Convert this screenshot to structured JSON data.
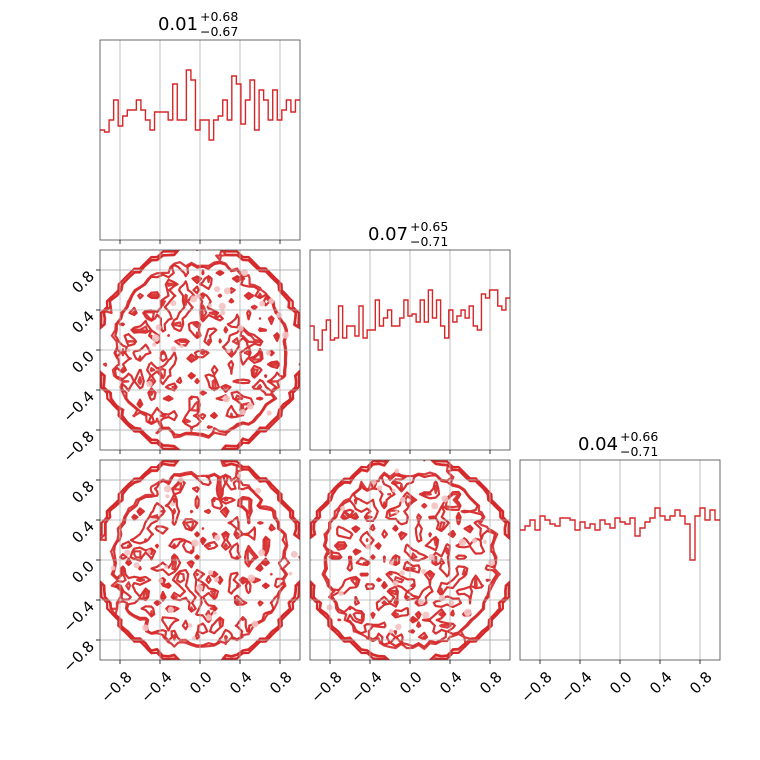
{
  "chart_data": {
    "type": "corner",
    "color": "#d62728",
    "fill_color": "#f4c2c2",
    "grid_color": "#b0b0b0",
    "range": [
      -1,
      1
    ],
    "tick_values": [
      -0.8,
      -0.4,
      0.0,
      0.4,
      0.8
    ],
    "tick_labels": [
      "−0.8",
      "−0.4",
      "0.0",
      "0.4",
      "0.8"
    ],
    "grid": true,
    "parameters": [
      {
        "median": "0.01",
        "upper": "+0.68",
        "lower": "−0.67",
        "hist_values": [
          0.55,
          0.54,
          0.6,
          0.7,
          0.57,
          0.62,
          0.65,
          0.65,
          0.7,
          0.65,
          0.6,
          0.55,
          0.64,
          0.64,
          0.64,
          0.6,
          0.78,
          0.6,
          0.6,
          0.85,
          0.8,
          0.55,
          0.6,
          0.6,
          0.5,
          0.6,
          0.62,
          0.7,
          0.6,
          0.82,
          0.78,
          0.58,
          0.7,
          0.8,
          0.55,
          0.75,
          0.7,
          0.6,
          0.75,
          0.6,
          0.65,
          0.7,
          0.64,
          0.7
        ],
        "hist_ylim": [
          0,
          1
        ]
      },
      {
        "median": "0.07",
        "upper": "+0.65",
        "lower": "−0.71",
        "hist_values": [
          0.62,
          0.55,
          0.5,
          0.6,
          0.65,
          0.55,
          0.56,
          0.72,
          0.56,
          0.62,
          0.62,
          0.57,
          0.72,
          0.56,
          0.6,
          0.6,
          0.75,
          0.62,
          0.66,
          0.7,
          0.62,
          0.62,
          0.66,
          0.75,
          0.67,
          0.68,
          0.64,
          0.75,
          0.64,
          0.8,
          0.66,
          0.75,
          0.62,
          0.56,
          0.7,
          0.64,
          0.67,
          0.7,
          0.66,
          0.72,
          0.62,
          0.6,
          0.78,
          0.76,
          0.8,
          0.8,
          0.72,
          0.7,
          0.76
        ],
        "hist_ylim": [
          0,
          1
        ]
      },
      {
        "median": "0.04",
        "upper": "+0.66",
        "lower": "−0.71",
        "hist_values": [
          0.65,
          0.67,
          0.7,
          0.65,
          0.72,
          0.7,
          0.68,
          0.67,
          0.71,
          0.71,
          0.7,
          0.65,
          0.69,
          0.66,
          0.68,
          0.65,
          0.7,
          0.68,
          0.66,
          0.71,
          0.69,
          0.68,
          0.71,
          0.62,
          0.66,
          0.69,
          0.71,
          0.76,
          0.72,
          0.7,
          0.72,
          0.75,
          0.72,
          0.68,
          0.5,
          0.72,
          0.76,
          0.7,
          0.75,
          0.7
        ],
        "hist_ylim": [
          0,
          1
        ]
      }
    ]
  }
}
